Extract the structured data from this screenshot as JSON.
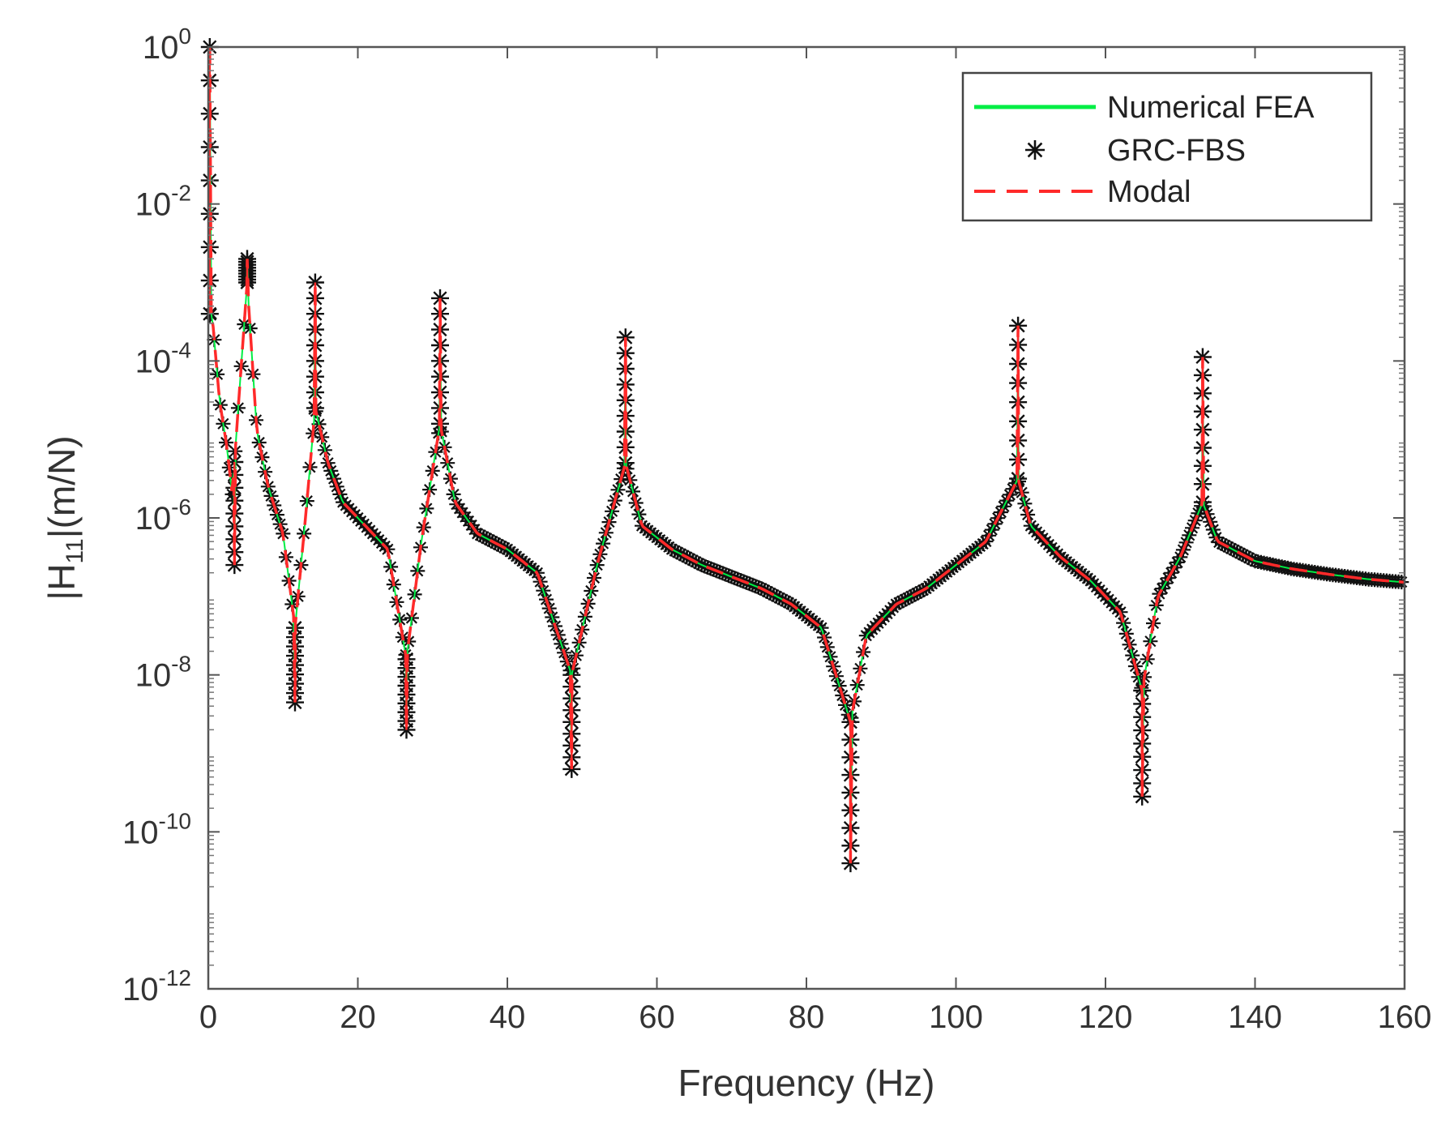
{
  "chart_data": {
    "type": "line",
    "title": "",
    "xlabel": "Frequency (Hz)",
    "ylabel": {
      "prefix": "|H",
      "sub": "11",
      "suffix": "|(m/N)"
    },
    "xlim": [
      0,
      160
    ],
    "ylim_log10": [
      -12,
      0
    ],
    "yscale": "log",
    "grid": false,
    "legend_position": "top-right",
    "x_ticks": [
      0,
      20,
      40,
      60,
      80,
      100,
      120,
      140,
      160
    ],
    "x_tick_labels": [
      "0",
      "20",
      "40",
      "60",
      "80",
      "100",
      "120",
      "140",
      "160"
    ],
    "y_ticks_log10": [
      0,
      -2,
      -4,
      -6,
      -8,
      -10,
      -12
    ],
    "y_tick_labels": [
      {
        "base": "10",
        "exp": "0"
      },
      {
        "base": "10",
        "exp": "-2"
      },
      {
        "base": "10",
        "exp": "-4"
      },
      {
        "base": "10",
        "exp": "-6"
      },
      {
        "base": "10",
        "exp": "-8"
      },
      {
        "base": "10",
        "exp": "-10"
      },
      {
        "base": "10",
        "exp": "-12"
      }
    ],
    "legend": [
      {
        "label": "Numerical FEA",
        "color": "#00ee44",
        "style": "solid"
      },
      {
        "label": "GRC-FBS",
        "color": "#111111",
        "style": "asterisk"
      },
      {
        "label": "Modal",
        "color": "#ff2a2a",
        "style": "dashed"
      }
    ],
    "resonances": [
      {
        "freq": 0.2,
        "peak_log10": 0.0
      },
      {
        "freq": 5.2,
        "peak_log10": -2.7
      },
      {
        "freq": 14.3,
        "peak_log10": -3.0
      },
      {
        "freq": 31.0,
        "peak_log10": -3.2
      },
      {
        "freq": 55.8,
        "peak_log10": -3.7
      },
      {
        "freq": 108.3,
        "peak_log10": -3.55
      },
      {
        "freq": 133.0,
        "peak_log10": -3.95
      }
    ],
    "antiresonances": [
      {
        "freq": 3.5,
        "dip_log10": -6.6
      },
      {
        "freq": 11.6,
        "dip_log10": -8.35
      },
      {
        "freq": 26.5,
        "dip_log10": -8.7
      },
      {
        "freq": 48.6,
        "dip_log10": -9.2
      },
      {
        "freq": 85.9,
        "dip_log10": -10.4
      },
      {
        "freq": 124.9,
        "dip_log10": -9.55
      }
    ],
    "series": [
      {
        "name": "Modal",
        "x": [
          0.5,
          1.5,
          2.5,
          3.2,
          4.0,
          5.2,
          6.5,
          8.0,
          10.0,
          11.6,
          13.0,
          14.3,
          16.0,
          18.0,
          21.0,
          24.0,
          26.5,
          28.5,
          31.0,
          33.0,
          36.0,
          40.0,
          44.0,
          48.6,
          52.0,
          55.8,
          58.0,
          62.0,
          66.0,
          70.0,
          74.0,
          78.0,
          82.0,
          85.9,
          88.0,
          92.0,
          96.0,
          100.0,
          104.0,
          108.3,
          110.0,
          114.0,
          118.0,
          122.0,
          124.9,
          127.0,
          130.0,
          133.0,
          135.0,
          140.0,
          145.0,
          150.0,
          155.0,
          160.0
        ],
        "log10_y": [
          -3.4,
          -4.5,
          -5.1,
          -5.7,
          -4.6,
          -3.0,
          -4.9,
          -5.6,
          -6.2,
          -7.4,
          -6.0,
          -4.6,
          -5.3,
          -5.8,
          -6.1,
          -6.4,
          -7.8,
          -6.3,
          -4.8,
          -5.8,
          -6.2,
          -6.4,
          -6.7,
          -8.0,
          -6.6,
          -5.3,
          -6.1,
          -6.4,
          -6.6,
          -6.75,
          -6.9,
          -7.1,
          -7.4,
          -8.6,
          -7.5,
          -7.1,
          -6.9,
          -6.6,
          -6.3,
          -5.5,
          -6.1,
          -6.5,
          -6.8,
          -7.2,
          -8.2,
          -7.0,
          -6.5,
          -5.8,
          -6.3,
          -6.55,
          -6.65,
          -6.72,
          -6.78,
          -6.82
        ]
      }
    ]
  }
}
